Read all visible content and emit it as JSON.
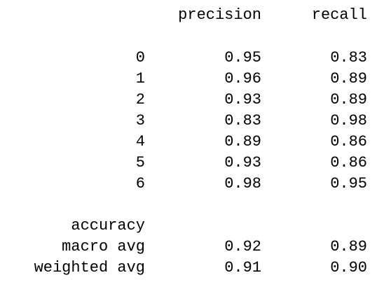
{
  "report": {
    "headers": {
      "precision": "precision",
      "recall": "recall"
    },
    "class_rows": [
      {
        "label": "0",
        "precision": "0.95",
        "recall": "0.83"
      },
      {
        "label": "1",
        "precision": "0.96",
        "recall": "0.89"
      },
      {
        "label": "2",
        "precision": "0.93",
        "recall": "0.89"
      },
      {
        "label": "3",
        "precision": "0.83",
        "recall": "0.98"
      },
      {
        "label": "4",
        "precision": "0.89",
        "recall": "0.86"
      },
      {
        "label": "5",
        "precision": "0.93",
        "recall": "0.86"
      },
      {
        "label": "6",
        "precision": "0.98",
        "recall": "0.95"
      }
    ],
    "summary_rows": [
      {
        "label": "accuracy",
        "precision": "",
        "recall": ""
      },
      {
        "label": "macro avg",
        "precision": "0.92",
        "recall": "0.89"
      },
      {
        "label": "weighted avg",
        "precision": "0.91",
        "recall": "0.90"
      }
    ]
  }
}
